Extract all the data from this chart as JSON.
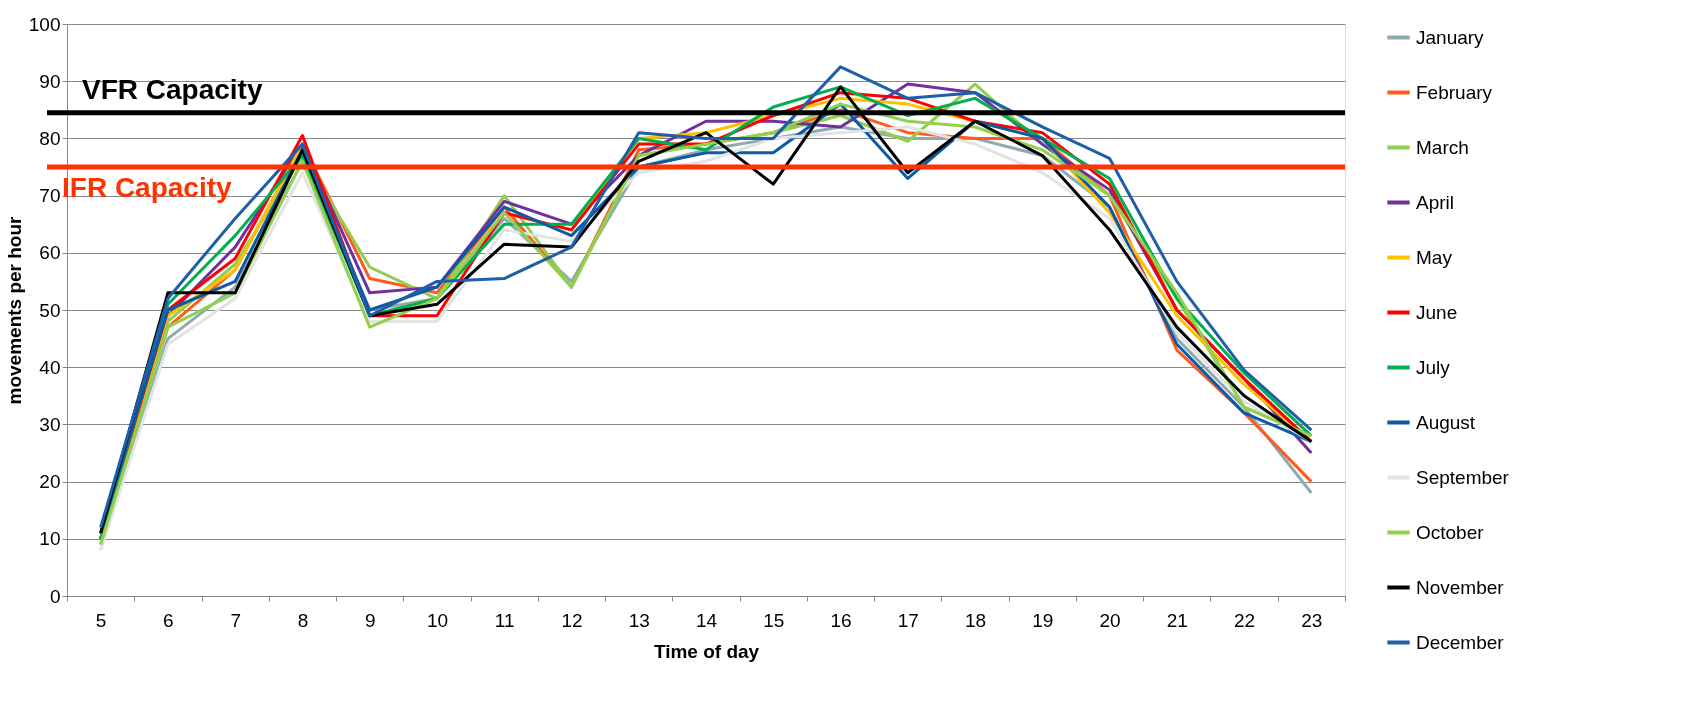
{
  "chart_data": {
    "type": "line",
    "xlabel": "Time of day",
    "ylabel": "movements per hour",
    "categories": [
      "5",
      "6",
      "7",
      "8",
      "9",
      "10",
      "11",
      "12",
      "13",
      "14",
      "15",
      "16",
      "17",
      "18",
      "19",
      "20",
      "21",
      "22",
      "23"
    ],
    "series": [
      {
        "name": "January",
        "color": "#8faab0",
        "values": [
          9,
          45,
          54,
          76,
          50,
          52,
          66,
          55,
          75,
          78,
          80,
          82,
          80,
          80,
          77,
          68,
          45,
          33,
          18
        ]
      },
      {
        "name": "February",
        "color": "#ff5a1f",
        "values": [
          10,
          47,
          57,
          79,
          55.5,
          53,
          68,
          54,
          78,
          79,
          81,
          85,
          81,
          80,
          80,
          70,
          43,
          32,
          20
        ]
      },
      {
        "name": "March",
        "color": "#8fce4f",
        "values": [
          9,
          48,
          58,
          77,
          57.5,
          52,
          70,
          54,
          77,
          79,
          81,
          84,
          79.5,
          89.5,
          79,
          70,
          52,
          33,
          28
        ]
      },
      {
        "name": "April",
        "color": "#7030a0",
        "values": [
          10,
          49,
          61,
          79,
          53,
          54,
          69,
          65,
          77,
          83,
          83,
          82,
          89.5,
          88,
          79,
          71,
          50,
          38,
          25
        ]
      },
      {
        "name": "May",
        "color": "#ffc000",
        "values": [
          10,
          49,
          57,
          79,
          49,
          52,
          67,
          64,
          80,
          81,
          84,
          87,
          86,
          83,
          80,
          67,
          49,
          37,
          27
        ]
      },
      {
        "name": "June",
        "color": "#ff0000",
        "values": [
          10,
          50,
          59,
          80.5,
          49,
          49,
          67,
          64,
          79,
          79,
          84,
          88,
          87,
          83,
          81,
          72,
          50,
          38,
          27
        ]
      },
      {
        "name": "July",
        "color": "#00b050",
        "values": [
          10,
          51,
          63,
          77,
          49,
          52,
          65,
          65,
          80,
          78,
          85.5,
          89,
          84,
          87,
          80,
          73,
          52,
          39,
          28
        ]
      },
      {
        "name": "August",
        "color": "#0b5aa6",
        "values": [
          11,
          50,
          55,
          78,
          50,
          54,
          68,
          63,
          75,
          77.5,
          77.5,
          86,
          73,
          83,
          80,
          68,
          44,
          32,
          27
        ]
      },
      {
        "name": "September",
        "color": "#e3e3e3",
        "values": [
          8,
          44,
          52,
          74,
          48,
          48,
          64,
          62,
          74,
          76,
          80,
          81,
          82,
          79,
          74,
          66,
          46,
          34,
          27
        ]
      },
      {
        "name": "October",
        "color": "#92d050",
        "values": [
          9,
          47,
          53,
          76,
          47,
          52,
          67,
          54,
          77,
          79,
          81,
          86,
          83,
          82,
          78,
          70,
          53,
          33,
          28
        ]
      },
      {
        "name": "November",
        "color": "#000000",
        "values": [
          11,
          53,
          53,
          78,
          49,
          51,
          61.5,
          61,
          76,
          81,
          72,
          89,
          74,
          83,
          77,
          64,
          47,
          35,
          27
        ]
      },
      {
        "name": "December",
        "color": "#1f5fa8",
        "values": [
          12,
          52,
          66,
          79,
          49,
          55,
          55.5,
          61,
          81,
          80,
          80,
          92.5,
          87,
          88,
          82,
          76.5,
          55,
          39.5,
          29
        ]
      }
    ],
    "ylim": [
      0,
      100
    ],
    "yticks": [
      0,
      10,
      20,
      30,
      40,
      50,
      60,
      70,
      80,
      90,
      100
    ],
    "ref_lines": [
      {
        "axis": "y",
        "value": 84.5,
        "label": "VFR Capacity",
        "color": "#000000"
      },
      {
        "axis": "y",
        "value": 75,
        "label": "IFR Capacity",
        "color": "#ff3300"
      }
    ],
    "grid": "y",
    "legend": "right",
    "marker": "none",
    "line_style": "solid"
  }
}
